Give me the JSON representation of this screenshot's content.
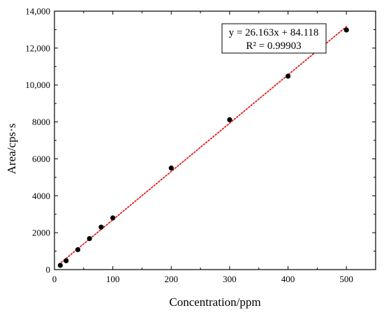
{
  "chart_data": {
    "type": "scatter",
    "xlabel": "Concentration/ppm",
    "ylabel": "Area/cps·s",
    "xlim": [
      0,
      550
    ],
    "ylim": [
      0,
      14000
    ],
    "x_ticks": [
      0,
      100,
      200,
      300,
      400,
      500
    ],
    "x_tick_labels": [
      "0",
      "100",
      "200",
      "300",
      "400",
      "500"
    ],
    "y_ticks": [
      0,
      2000,
      4000,
      6000,
      8000,
      10000,
      12000,
      14000
    ],
    "y_tick_labels": [
      "0",
      "2000",
      "4000",
      "6000",
      "8000",
      "10,000",
      "12,000",
      "14,000"
    ],
    "grid": false,
    "series": [
      {
        "x": [
          10,
          20,
          40,
          60,
          80,
          100,
          200,
          300,
          400,
          500
        ],
        "y": [
          230,
          480,
          1080,
          1680,
          2300,
          2800,
          5500,
          8120,
          10480,
          12980
        ],
        "color": "#000000"
      }
    ],
    "fit_line": {
      "slope": 26.163,
      "intercept": 84.118,
      "x_range": [
        8,
        500
      ],
      "color": "#e02020",
      "style": "dotted"
    },
    "annotation": {
      "equation": "y = 26.163x + 84.118",
      "r_squared": "R² = 0.99903",
      "placement": "top-right"
    }
  }
}
